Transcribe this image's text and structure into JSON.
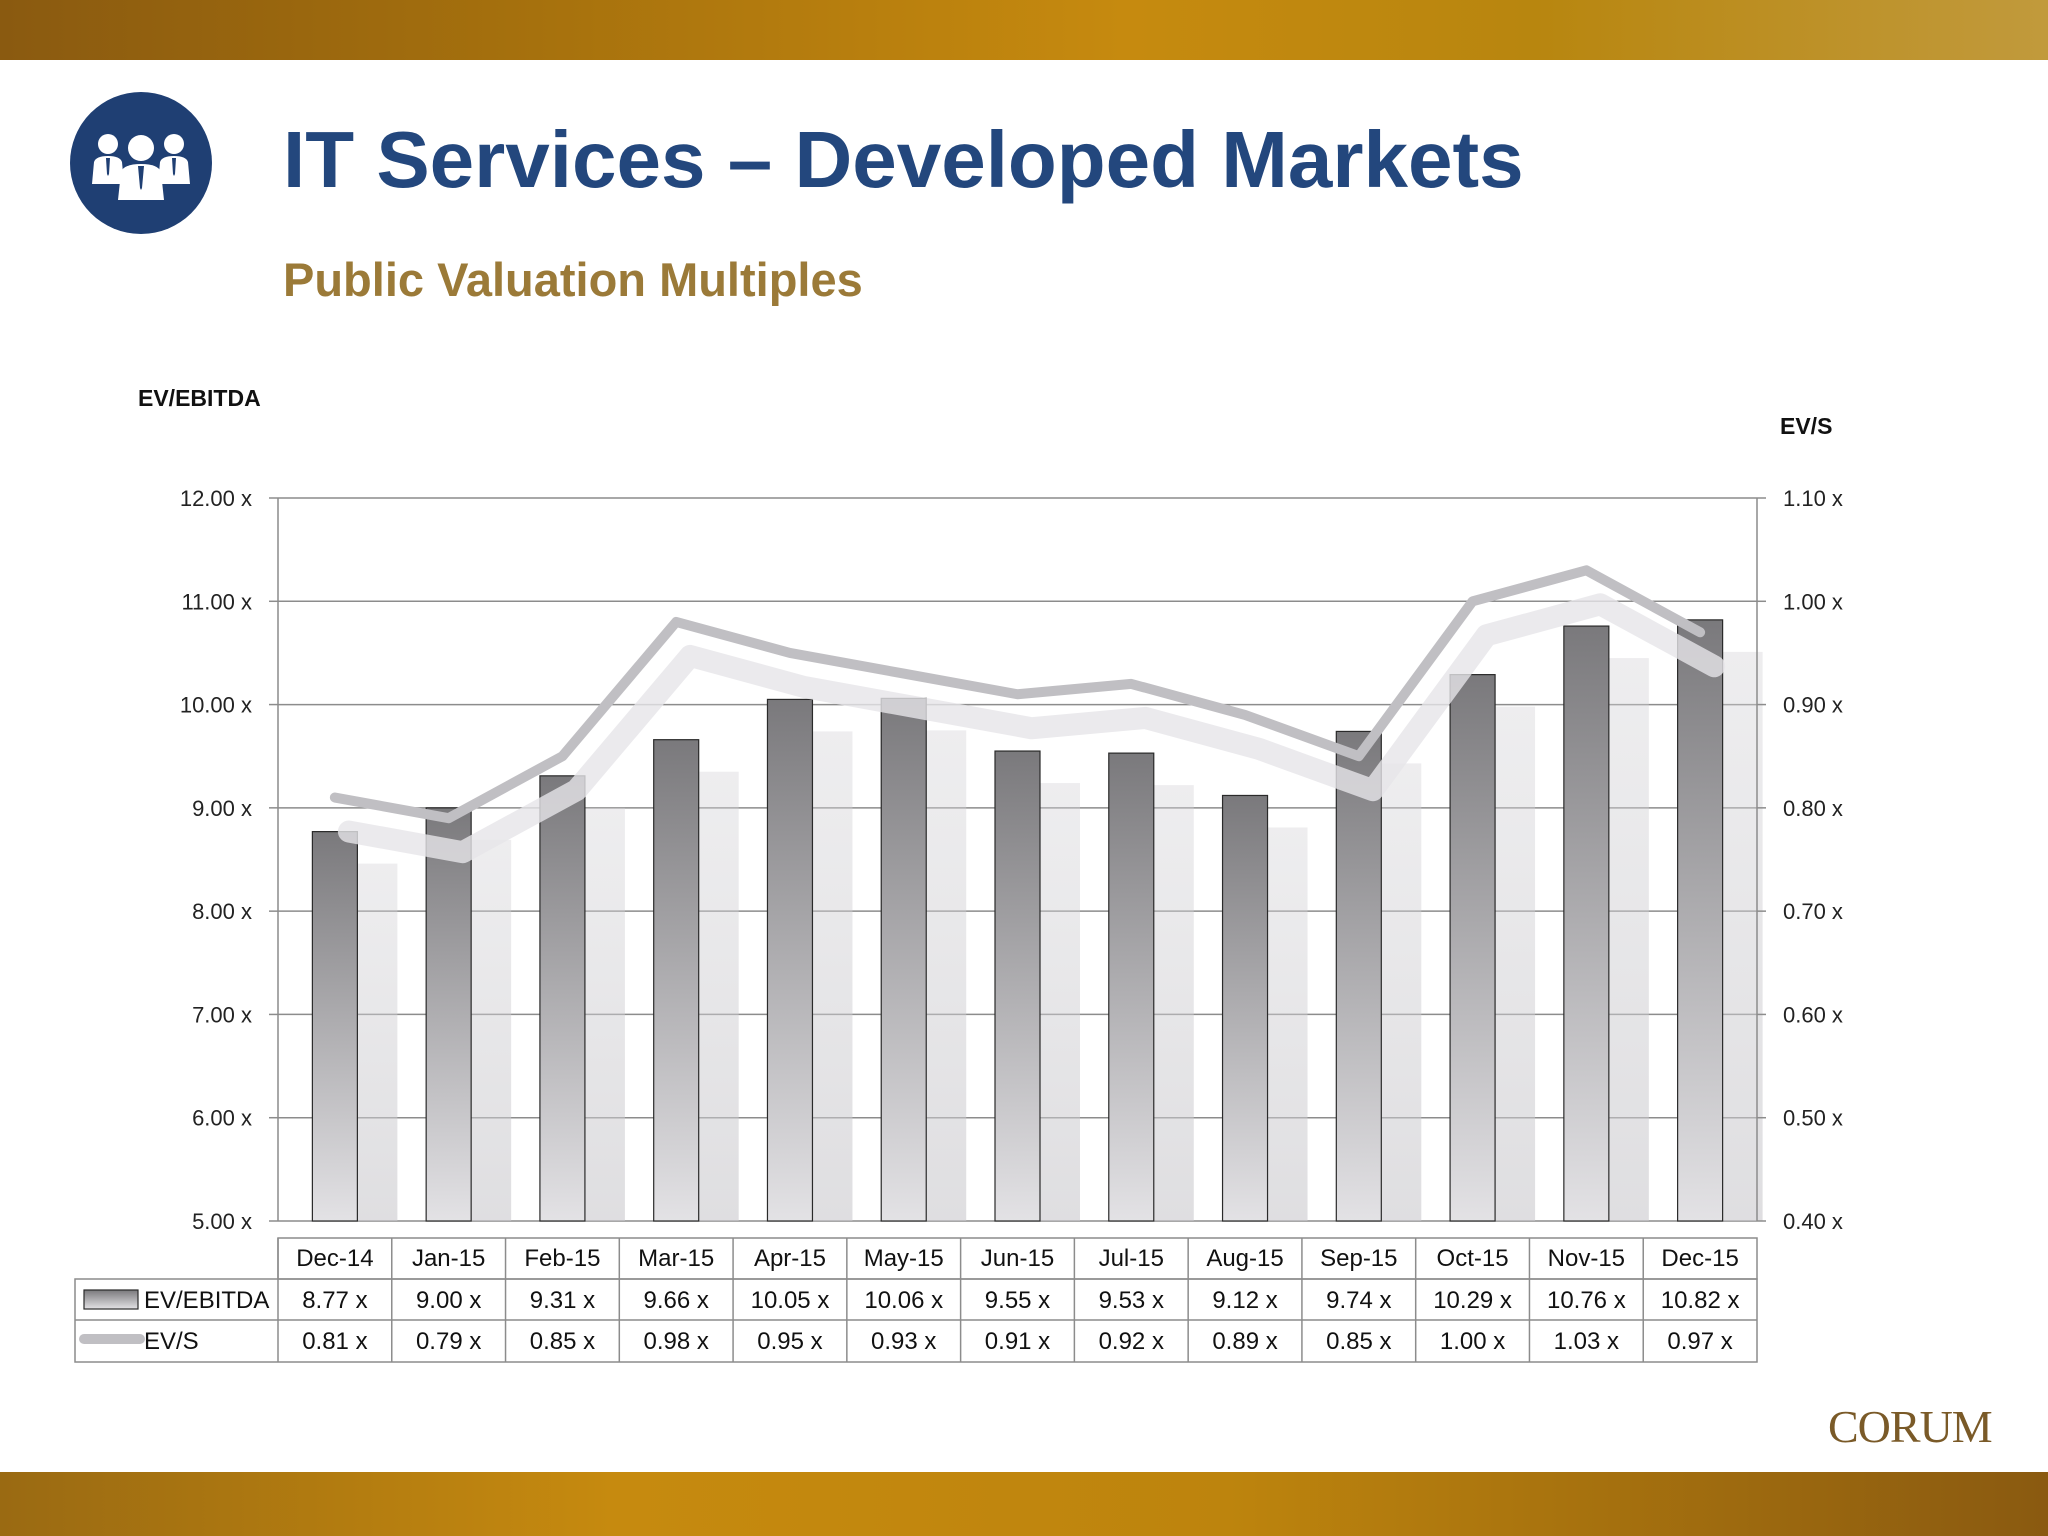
{
  "header": {
    "title": "IT Services – Developed Markets",
    "subtitle": "Public Valuation Multiples",
    "logo_icon": "people-group-icon"
  },
  "footer": {
    "brand": "CORUM"
  },
  "colors": {
    "title": "#23477d",
    "subtitle": "#9b7a38",
    "band": "#b8860f",
    "bar_top": "#7a797c",
    "bar_bottom": "#e3e2e5",
    "line": "#c0bfc3"
  },
  "chart_data": {
    "type": "bar",
    "combo": "bar-line-dual-axis",
    "categories": [
      "Dec-14",
      "Jan-15",
      "Feb-15",
      "Mar-15",
      "Apr-15",
      "May-15",
      "Jun-15",
      "Jul-15",
      "Aug-15",
      "Sep-15",
      "Oct-15",
      "Nov-15",
      "Dec-15"
    ],
    "series": [
      {
        "name": "EV/EBITDA",
        "type": "bar",
        "axis": "left",
        "values": [
          8.77,
          9.0,
          9.31,
          9.66,
          10.05,
          10.06,
          9.55,
          9.53,
          9.12,
          9.74,
          10.29,
          10.76,
          10.82
        ],
        "labels": [
          "8.77 x",
          "9.00 x",
          "9.31 x",
          "9.66 x",
          "10.05 x",
          "10.06 x",
          "9.55 x",
          "9.53 x",
          "9.12 x",
          "9.74 x",
          "10.29 x",
          "10.76 x",
          "10.82 x"
        ]
      },
      {
        "name": "EV/S",
        "type": "line",
        "axis": "right",
        "values": [
          0.81,
          0.79,
          0.85,
          0.98,
          0.95,
          0.93,
          0.91,
          0.92,
          0.89,
          0.85,
          1.0,
          1.03,
          0.97
        ],
        "labels": [
          "0.81 x",
          "0.79 x",
          "0.85 x",
          "0.98 x",
          "0.95 x",
          "0.93 x",
          "0.91 x",
          "0.92 x",
          "0.89 x",
          "0.85 x",
          "1.00 x",
          "1.03 x",
          "0.97 x"
        ]
      }
    ],
    "y_left": {
      "label": "EV/EBITDA",
      "range": [
        5,
        12
      ],
      "ticks": [
        "5.00 x",
        "6.00 x",
        "7.00 x",
        "8.00 x",
        "9.00 x",
        "10.00 x",
        "11.00 x",
        "12.00 x"
      ]
    },
    "y_right": {
      "label": "EV/S",
      "range": [
        0.4,
        1.1
      ],
      "ticks": [
        "0.40 x",
        "0.50 x",
        "0.60 x",
        "0.70 x",
        "0.80 x",
        "0.90 x",
        "1.00 x",
        "1.10 x"
      ]
    },
    "grid": true,
    "legend": "data-table-below"
  }
}
